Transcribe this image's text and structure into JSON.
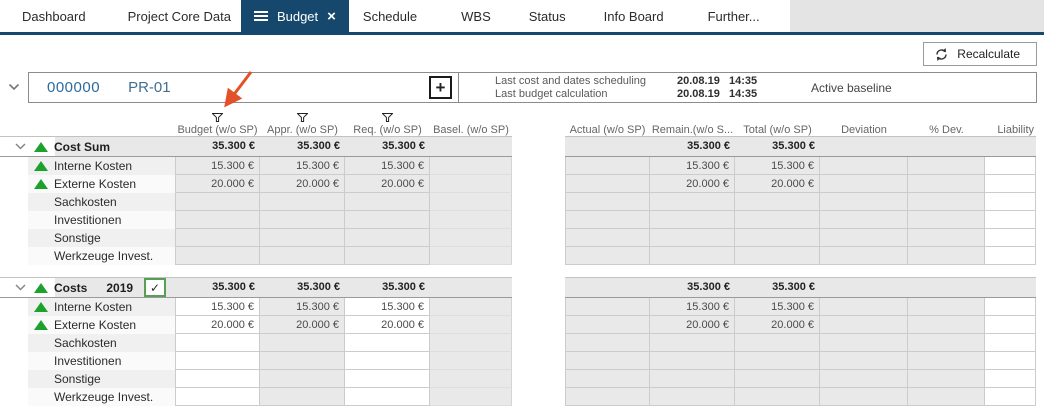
{
  "tabs": [
    {
      "label": "Dashboard"
    },
    {
      "label": "Project Core Data"
    },
    {
      "label": "Budget",
      "active": true,
      "closable": true
    },
    {
      "label": "Schedule"
    },
    {
      "label": "WBS"
    },
    {
      "label": "Status"
    },
    {
      "label": "Info Board"
    },
    {
      "label": "Further..."
    }
  ],
  "toolbar": {
    "recalculate_label": "Recalculate"
  },
  "project": {
    "number": "000000",
    "code": "PR-01",
    "add_label": "+"
  },
  "info": {
    "scheduling_label": "Last cost and dates scheduling",
    "scheduling_date": "20.08.19",
    "scheduling_time": "14:35",
    "budget_label": "Last budget calculation",
    "budget_date": "20.08.19",
    "budget_time": "14:35",
    "baseline_label": "Active baseline"
  },
  "columns": [
    {
      "label": "Budget (w/o SP)",
      "filtered": true
    },
    {
      "label": "Appr. (w/o SP)",
      "filtered": true
    },
    {
      "label": "Req. (w/o SP)",
      "filtered": true
    },
    {
      "label": "Basel. (w/o SP)",
      "filtered": false
    },
    {
      "label": "Actual (w/o SP)",
      "filtered": false
    },
    {
      "label": "Remain.(w/o S...",
      "filtered": false
    },
    {
      "label": "Total (w/o SP)",
      "filtered": false
    },
    {
      "label": "Deviation",
      "filtered": false
    },
    {
      "label": "% Dev.",
      "filtered": false
    },
    {
      "label": "Liability",
      "filtered": false
    }
  ],
  "blocks": [
    {
      "title": "Cost Sum",
      "year": "",
      "checkbox": false,
      "checkbox_checked": false,
      "editable": [],
      "sum": {
        "budget": "35.300 €",
        "appr": "35.300 €",
        "req": "35.300 €",
        "remain": "35.300 €",
        "total": "35.300 €"
      },
      "rows": [
        {
          "label": "Interne Kosten",
          "trend": "up",
          "values": {
            "budget": "15.300 €",
            "appr": "15.300 €",
            "req": "15.300 €",
            "remain": "15.300 €",
            "total": "15.300 €"
          }
        },
        {
          "label": "Externe Kosten",
          "trend": "up",
          "values": {
            "budget": "20.000 €",
            "appr": "20.000 €",
            "req": "20.000 €",
            "remain": "20.000 €",
            "total": "20.000 €"
          }
        },
        {
          "label": "Sachkosten",
          "trend": "",
          "values": {}
        },
        {
          "label": "Investitionen",
          "trend": "",
          "values": {}
        },
        {
          "label": "Sonstige",
          "trend": "",
          "values": {}
        },
        {
          "label": "Werkzeuge Invest.",
          "trend": "",
          "values": {}
        }
      ]
    },
    {
      "title": "Costs",
      "year": "2019",
      "checkbox": true,
      "checkbox_checked": true,
      "editable": [
        "budget",
        "req"
      ],
      "sum": {
        "budget": "35.300 €",
        "appr": "35.300 €",
        "req": "35.300 €",
        "remain": "35.300 €",
        "total": "35.300 €"
      },
      "rows": [
        {
          "label": "Interne Kosten",
          "trend": "up",
          "values": {
            "budget": "15.300 €",
            "appr": "15.300 €",
            "req": "15.300 €",
            "remain": "15.300 €",
            "total": "15.300 €"
          }
        },
        {
          "label": "Externe Kosten",
          "trend": "up",
          "values": {
            "budget": "20.000 €",
            "appr": "20.000 €",
            "req": "20.000 €",
            "remain": "20.000 €",
            "total": "20.000 €"
          }
        },
        {
          "label": "Sachkosten",
          "trend": "",
          "values": {}
        },
        {
          "label": "Investitionen",
          "trend": "",
          "values": {}
        },
        {
          "label": "Sonstige",
          "trend": "",
          "values": {}
        },
        {
          "label": "Werkzeuge Invest.",
          "trend": "",
          "values": {}
        }
      ]
    }
  ],
  "colors": {
    "accent": "#16486d",
    "link_blue": "#2a6b9f",
    "trend_green": "#1ca22c",
    "annotation_orange": "#e2512a",
    "sum_band_gray": "#e8e8e8",
    "cell_gray": "#e9e9e9"
  }
}
